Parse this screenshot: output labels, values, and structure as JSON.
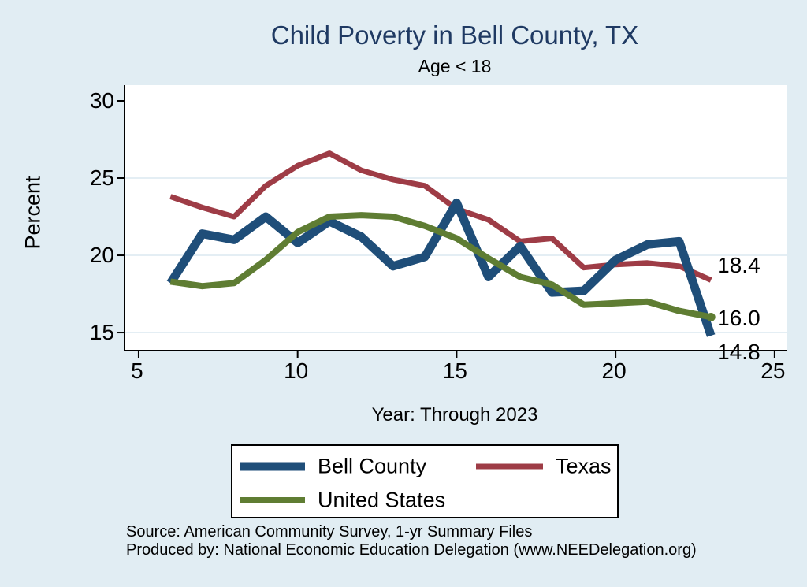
{
  "page": {
    "background": "#e1edf3"
  },
  "header": {
    "title": "Child Poverty in Bell County, TX",
    "subtitle": "Age < 18"
  },
  "chart_data": {
    "type": "line",
    "title": "Child Poverty in Bell County, TX",
    "subtitle": "Age < 18",
    "xlabel": "Year: Through 2023",
    "ylabel": "Percent",
    "x": [
      6,
      7,
      8,
      9,
      10,
      11,
      12,
      13,
      14,
      15,
      16,
      17,
      18,
      19,
      20,
      21,
      22,
      23
    ],
    "xticks": [
      5,
      10,
      15,
      20,
      25
    ],
    "yticks": [
      15,
      20,
      25,
      30
    ],
    "ygrid": [
      15,
      20,
      25
    ],
    "xlim": [
      4.58,
      25.4
    ],
    "ylim": [
      13.88,
      31.02
    ],
    "grid_on": true,
    "grid_color": "#dce8f0",
    "legend_position": "bottom",
    "series": [
      {
        "name": "Bell County",
        "color": "#1f4e79",
        "end_label": "14.8",
        "values": [
          18.2,
          21.4,
          21.0,
          22.5,
          20.8,
          22.2,
          21.2,
          19.3,
          19.9,
          23.4,
          18.6,
          20.6,
          17.6,
          17.7,
          19.7,
          20.7,
          20.9,
          14.8
        ]
      },
      {
        "name": "Texas",
        "color": "#9e3c46",
        "end_label": "18.4",
        "values": [
          23.8,
          23.1,
          22.5,
          24.5,
          25.8,
          26.6,
          25.5,
          24.9,
          24.5,
          23.0,
          22.3,
          20.9,
          21.1,
          19.2,
          19.4,
          19.5,
          19.3,
          18.4
        ]
      },
      {
        "name": "United States",
        "color": "#5f7d33",
        "end_label": "16.0",
        "end_marker": true,
        "values": [
          18.3,
          18.0,
          18.2,
          19.7,
          21.5,
          22.5,
          22.6,
          22.5,
          21.9,
          21.1,
          19.8,
          18.6,
          18.1,
          16.8,
          16.9,
          17.0,
          16.4,
          16.0
        ]
      }
    ]
  },
  "footer": {
    "line1": "Source: American Community Survey, 1-yr Summary Files",
    "line2": "Produced by: National Economic Education Delegation (www.NEEDelegation.org)"
  }
}
